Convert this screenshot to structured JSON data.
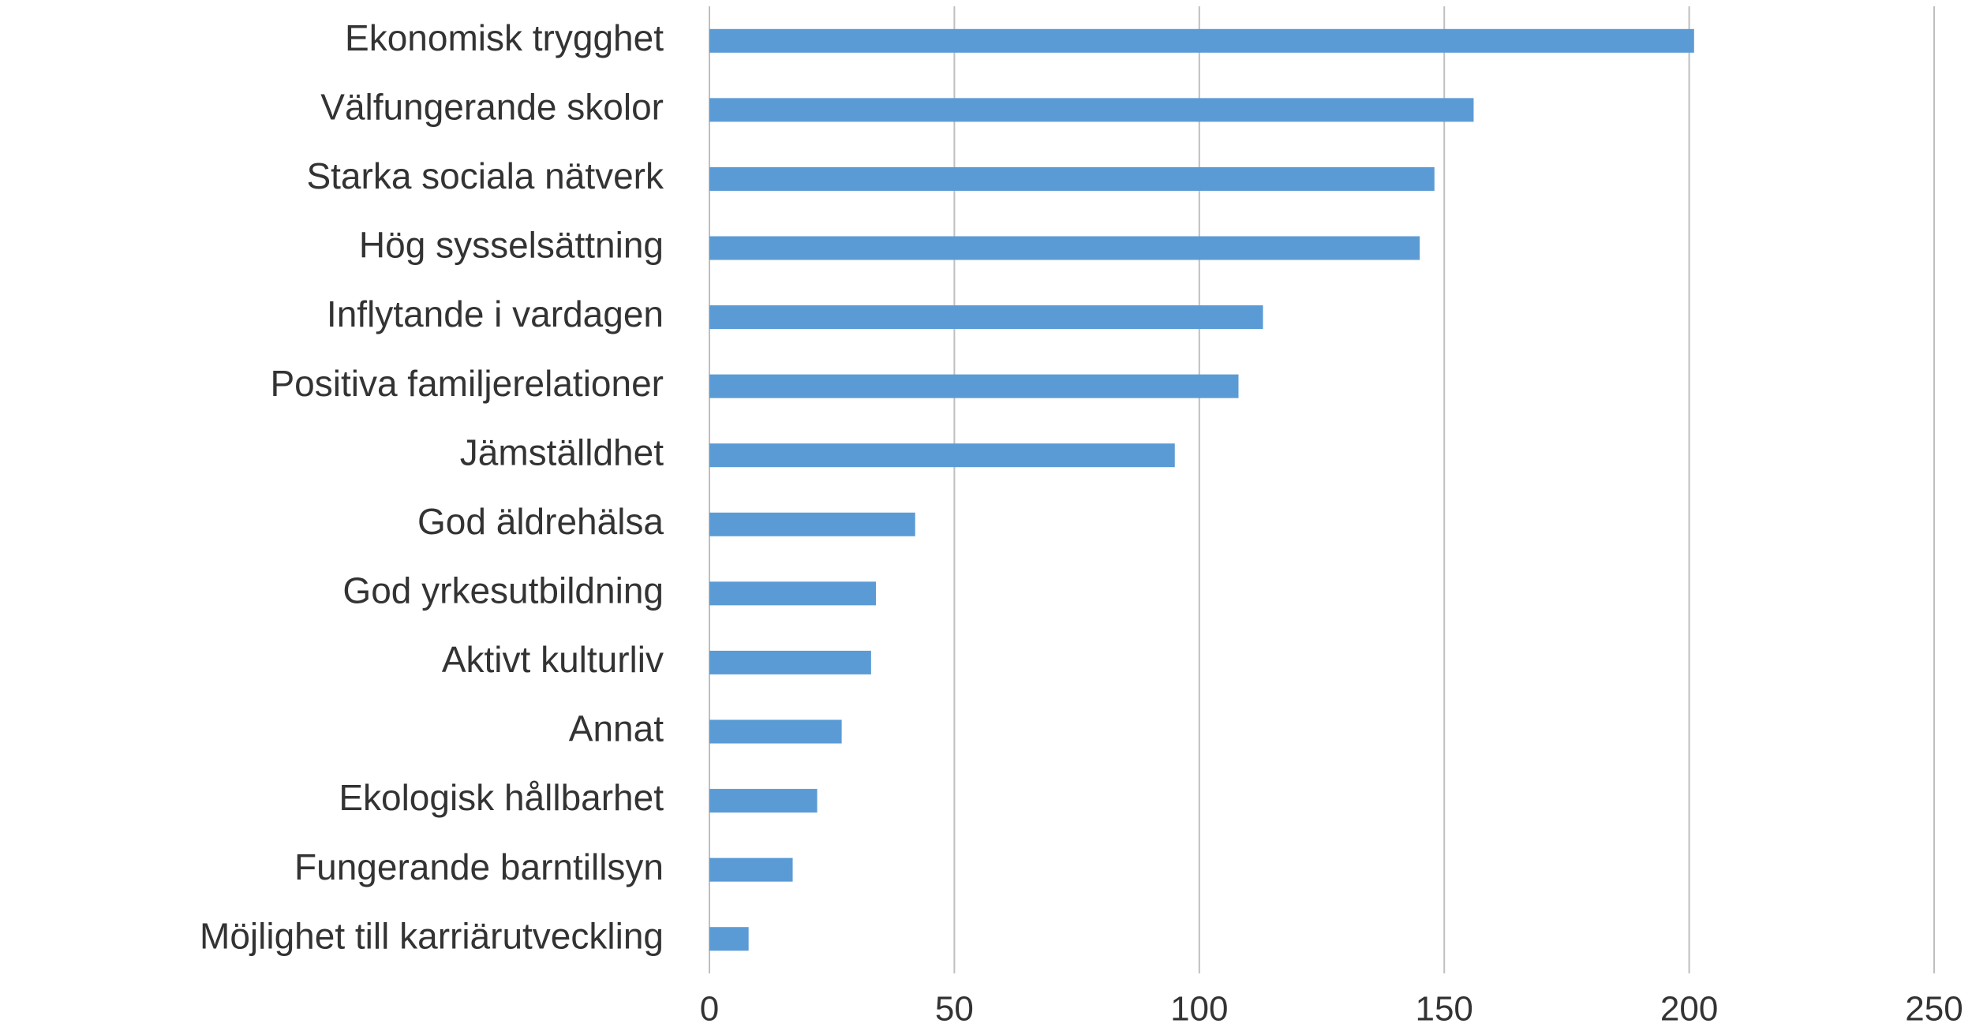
{
  "chart_data": {
    "type": "bar",
    "orientation": "horizontal",
    "categories": [
      "Ekonomisk trygghet",
      "Välfungerande skolor",
      "Starka sociala nätverk",
      "Hög sysselsättning",
      "Inflytande i vardagen",
      "Positiva familjerelationer",
      "Jämställdhet",
      "God äldrehälsa",
      "God yrkesutbildning",
      "Aktivt kulturliv",
      "Annat",
      "Ekologisk hållbarhet",
      "Fungerande barntillsyn",
      "Möjlighet till karriärutveckling"
    ],
    "values": [
      201,
      156,
      148,
      145,
      113,
      108,
      95,
      42,
      34,
      33,
      27,
      22,
      17,
      8
    ],
    "color": "#5b9bd5",
    "xlim": [
      0,
      250
    ],
    "xticks": [
      0,
      50,
      100,
      150,
      200,
      250
    ],
    "grid": true
  }
}
